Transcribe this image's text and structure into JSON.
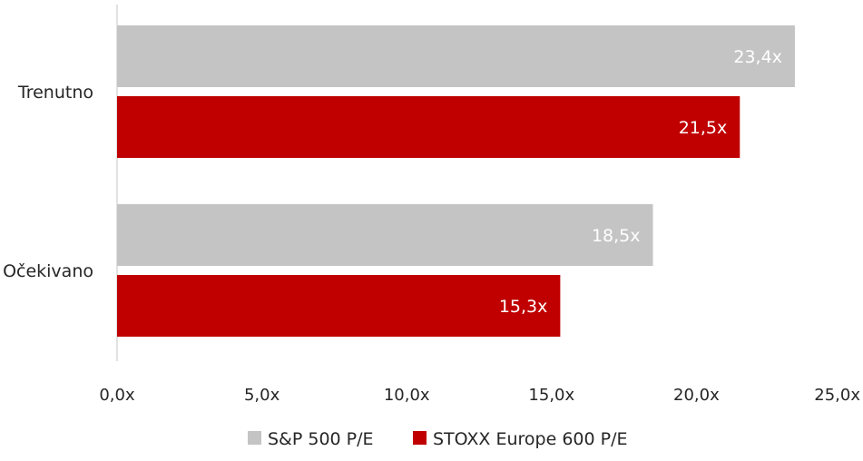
{
  "chart_data": {
    "type": "bar",
    "orientation": "horizontal",
    "categories": [
      "Trenutno",
      "Očekivano"
    ],
    "series": [
      {
        "name": "S&P 500 P/E",
        "values": [
          23.4,
          18.5
        ],
        "labels": [
          "23,4x",
          "18,5x"
        ],
        "color": "#c4c4c4"
      },
      {
        "name": "STOXX Europe 600 P/E",
        "values": [
          21.5,
          15.3
        ],
        "labels": [
          "21,5x",
          "15,3x"
        ],
        "color": "#c00000"
      }
    ],
    "xlim": [
      0,
      25
    ],
    "ticks": [
      0,
      5,
      10,
      15,
      20,
      25
    ],
    "tick_labels": [
      "0,0x",
      "5,0x",
      "10,0x",
      "15,0x",
      "20,0x",
      "25,0x"
    ],
    "grid": false,
    "legend": "bottom",
    "axis_color": "#d9d9d9",
    "text_color": "#262626"
  }
}
